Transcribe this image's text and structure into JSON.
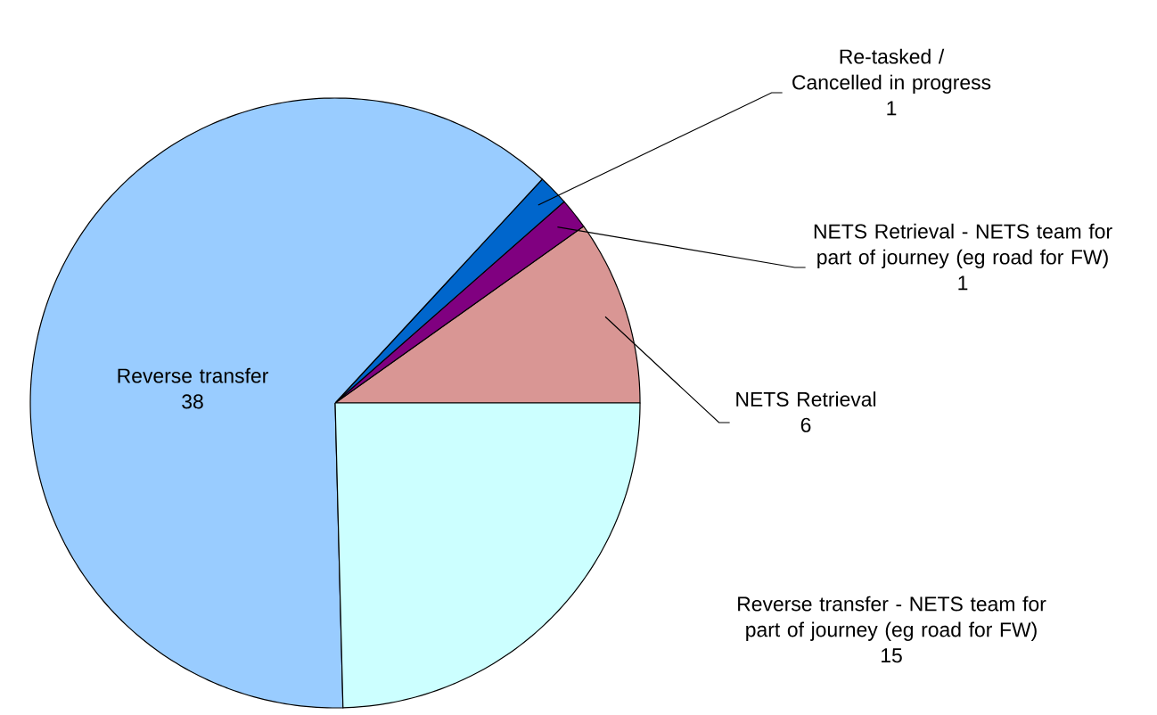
{
  "chart_data": {
    "type": "pie",
    "categories": [
      "NETS Retrieval",
      "NETS Retrieval - NETS team for part of journey (eg road for FW)",
      "Re-tasked / Cancelled in progress",
      "Reverse transfer",
      "Reverse transfer - NETS team for part of journey (eg road for FW)"
    ],
    "values": [
      6,
      1,
      1,
      38,
      15
    ],
    "colors": [
      "#d99694",
      "#800080",
      "#0066cc",
      "#99ccff",
      "#ccffff"
    ],
    "data_labels": true,
    "legend": false
  }
}
